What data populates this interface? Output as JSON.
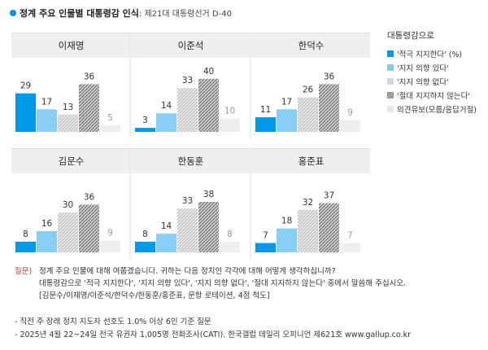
{
  "title": {
    "main": "정계 주요 인물별 대통령감 인식",
    "sub": ": 제21대 대통령선거 D-40"
  },
  "legend": {
    "title": "대통령감으로",
    "items": [
      {
        "label": "'적극 지지한다' (%)",
        "color": "#0099e8"
      },
      {
        "label": "'지지 의향 있다'",
        "color": "#7fcaf5"
      },
      {
        "label": "'지지 의향 없다'",
        "color": "#d0d0d0"
      },
      {
        "label": "'절대 지지하지 않는다'",
        "color": "#777777"
      },
      {
        "label": "의견유보(모름/응답거절)",
        "color": "#eeeeee"
      }
    ]
  },
  "chart_data": {
    "type": "bar",
    "categories": [
      "'적극 지지한다'",
      "'지지 의향 있다'",
      "'지지 의향 없다'",
      "'절대 지지하지 않는다'",
      "의견유보(모름/응답거절)"
    ],
    "unit": "%",
    "panels": [
      {
        "name": "이재명",
        "values": [
          29,
          17,
          13,
          36,
          5
        ]
      },
      {
        "name": "이준석",
        "values": [
          3,
          14,
          33,
          40,
          10
        ]
      },
      {
        "name": "한덕수",
        "values": [
          11,
          17,
          26,
          36,
          9
        ]
      },
      {
        "name": "김문수",
        "values": [
          8,
          16,
          30,
          36,
          9
        ]
      },
      {
        "name": "한동훈",
        "values": [
          8,
          14,
          33,
          38,
          8
        ]
      },
      {
        "name": "홍준표",
        "values": [
          7,
          18,
          32,
          37,
          7
        ]
      }
    ]
  },
  "notes": {
    "q_label": "질문)",
    "lines": [
      "정계 주요 인물에 대해 여쭙겠습니다. 귀하는 다음 정치인 각각에 대해 어떻게 생각하십니까?",
      "대통령감으로 '적극 지지한다', '지지 의향 있다', '지지 의향 없다', '절대 지지하지 않는다' 중에서 말씀해 주십시오.",
      "[김문수/이재명/이준석/한덕수/한동훈/홍준표, 문항 로테이션, 4점 척도]"
    ],
    "footnotes": [
      "- 직전 주 장래 정치 지도자 선호도 1.0% 이상 6인 기준 질문",
      "- 2025년 4월 22~24일 전국 유권자 1,005명 전화조사(CATI). 한국갤럽 데일리 오피니언 제621호 www.gallup.co.kr"
    ]
  }
}
